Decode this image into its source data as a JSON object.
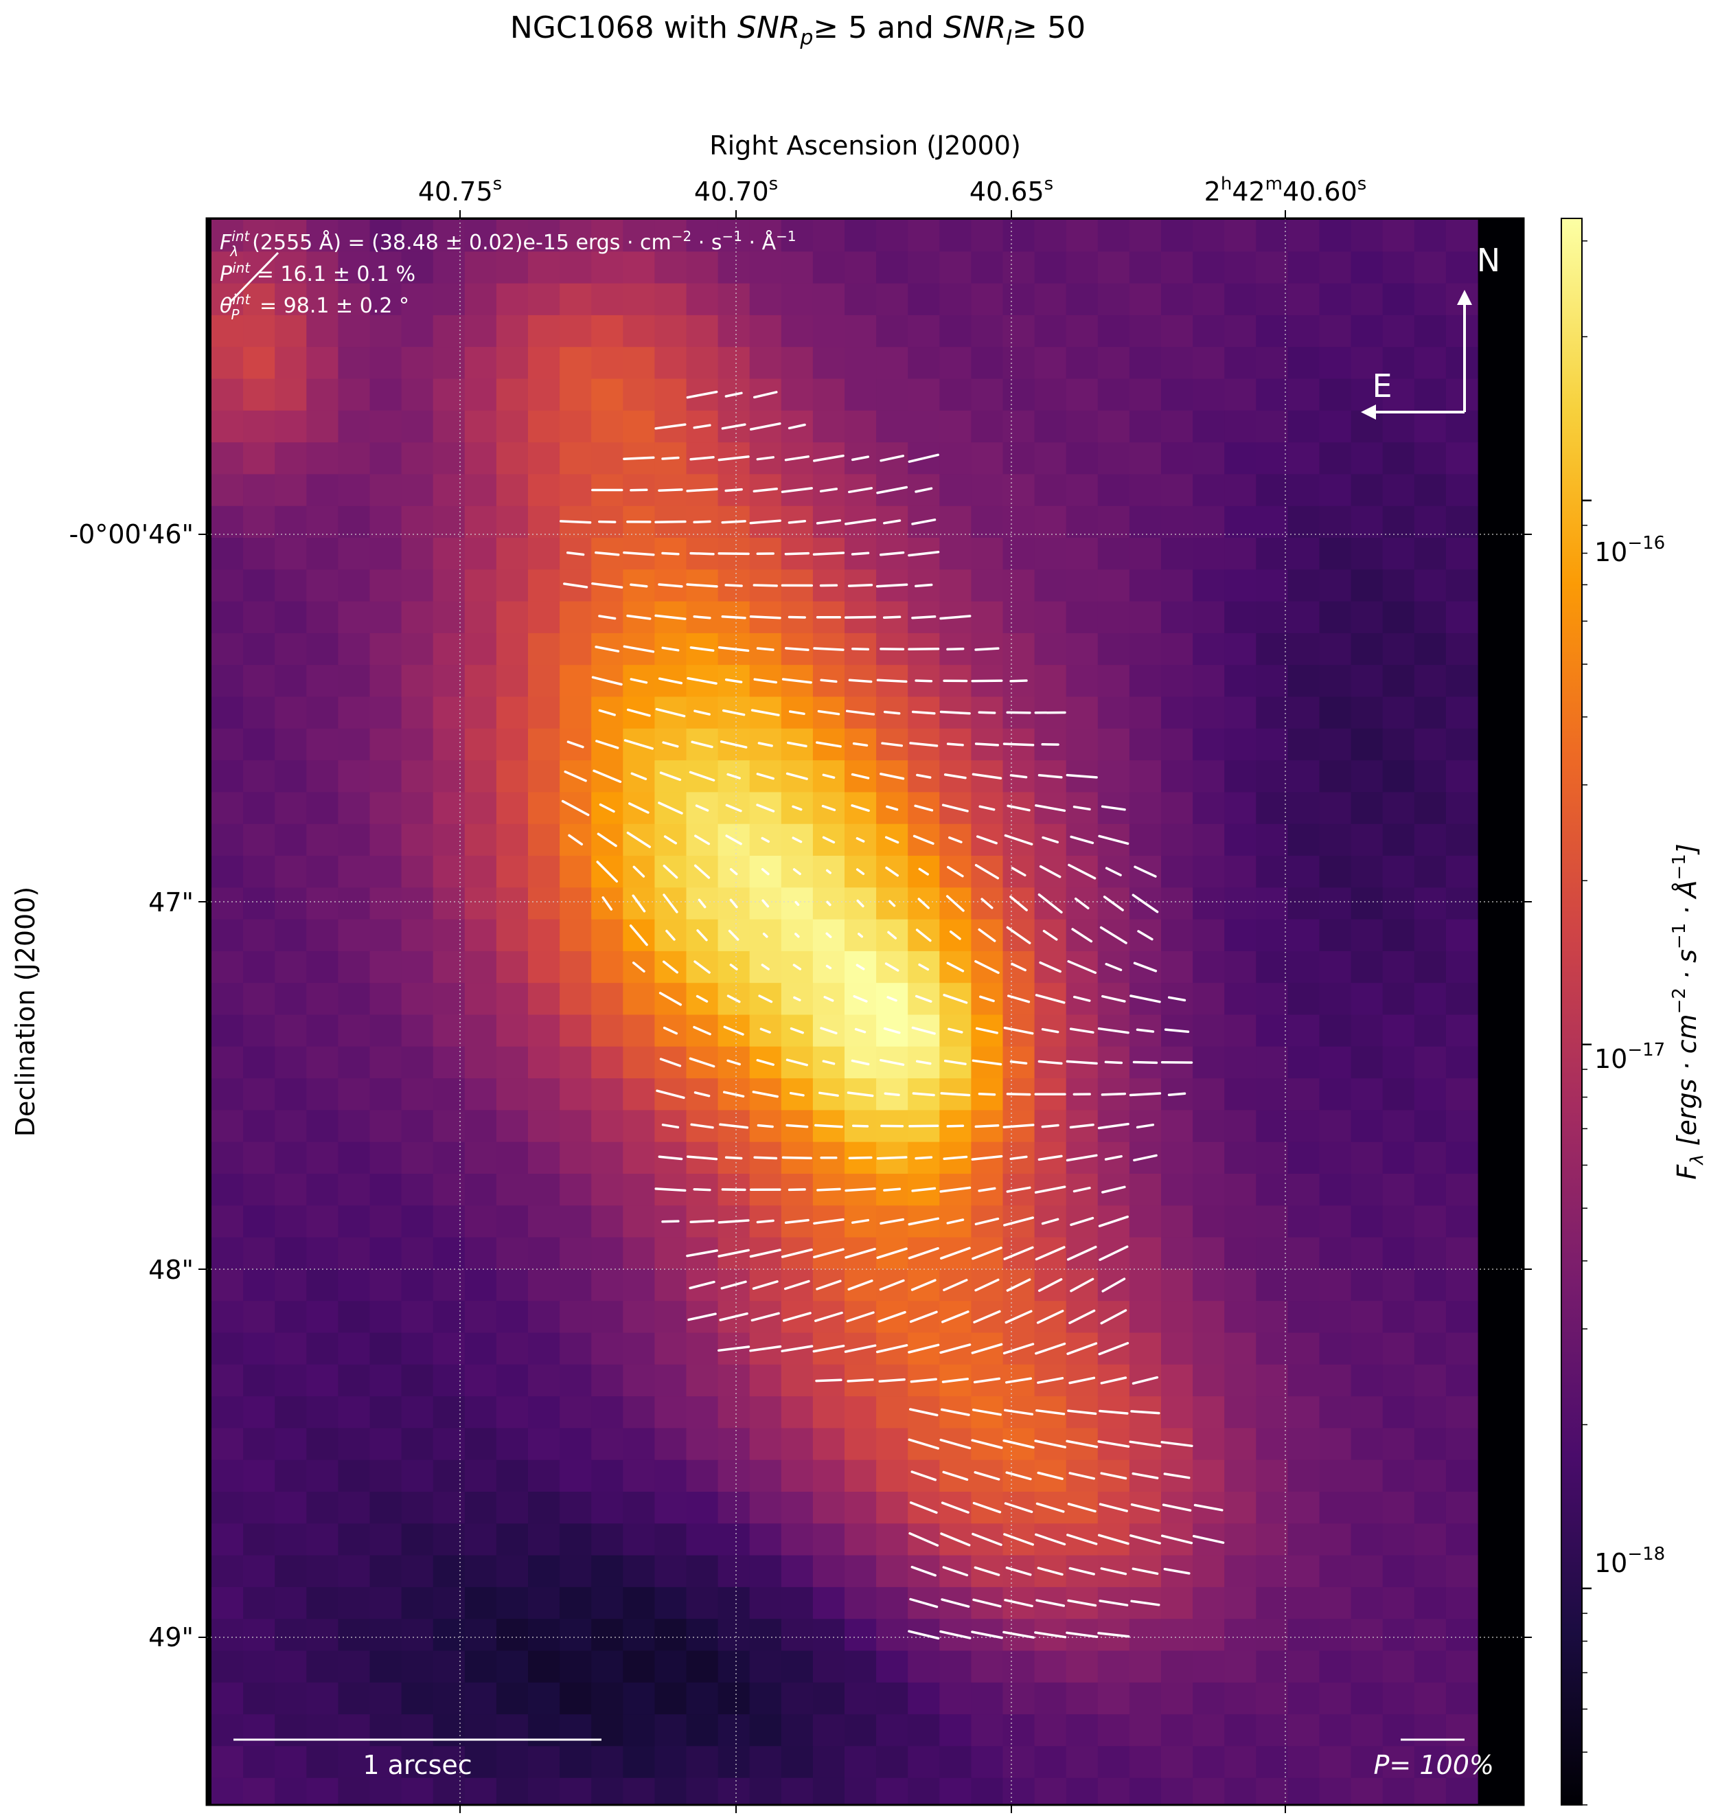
{
  "title_main": "NGC1068 with ",
  "title_snrp": "SNR",
  "title_snrp_sub": "p",
  "title_mid": "≥  5 and ",
  "title_snri": "SNR",
  "title_snri_sub": "I",
  "title_end": "≥  50",
  "colors": {
    "vector": "#ffffff",
    "grid": "#d8d8d8",
    "background": "#000000",
    "cmap": [
      "#000004",
      "#1b0c41",
      "#4a0c6b",
      "#781c6d",
      "#a52c60",
      "#cf4446",
      "#ed6925",
      "#fb9b06",
      "#f7d13d",
      "#fcffa4"
    ]
  },
  "chart_data": {
    "type": "heatmap",
    "object": "NGC1068",
    "xlabel": "Right Ascension (J2000)",
    "ylabel": "Declination (J2000)",
    "x_ticks": [
      {
        "main": "40.75",
        "sup": "s"
      },
      {
        "main": "40.70",
        "sup": "s"
      },
      {
        "main": "40.65",
        "sup": "s"
      },
      {
        "main": "2",
        "sup": "h",
        "main2": "42",
        "sup2": "m",
        "main3": "40.60",
        "sup3": "s"
      }
    ],
    "y_ticks": [
      "-0°00'46\"",
      "47\"",
      "48\"",
      "49\""
    ],
    "colorbar": {
      "label_main": "F",
      "label_sub": "λ",
      "label_units": " [ergs · cm",
      "label_exp1": "−2",
      "label_mid": " · s",
      "label_exp2": "−1",
      "label_mid2": " · Å",
      "label_exp3": "−1",
      "label_close": "]",
      "scale": "log",
      "ticks": [
        {
          "base": "10",
          "exp": "−16",
          "value": 1e-16
        },
        {
          "base": "10",
          "exp": "−17",
          "value": 1e-17
        },
        {
          "base": "10",
          "exp": "−18",
          "value": 1e-18
        }
      ],
      "range": [
        4e-19,
        3.3e-16
      ]
    },
    "annotations": {
      "flux": "(2555 Å) = (38.48 ± 0.02)e-15 ergs · cm",
      "flux_sym": "F",
      "flux_sub": "λ",
      "flux_sup": "int",
      "flux_exp1": "−2",
      "flux_mid": " · s",
      "flux_exp2": "−1",
      "flux_mid2": " · Å",
      "flux_exp3": "−1",
      "pol_sym": "P",
      "pol_sup": "int",
      "pol_value": " = 16.1 ± 0.1 %",
      "angle_sym": "θ",
      "angle_sub": "P",
      "angle_sup": "int",
      "angle_value": " = 98.1 ± 0.2 °"
    },
    "compass": {
      "north": "N",
      "east": "E"
    },
    "scalebar_label": "1 arcsec",
    "pol_scale_label": "P= 100%",
    "grid": true,
    "polarization_vectors": "white segments at SNRp ≥ 5 and SNRI ≥ 50"
  }
}
